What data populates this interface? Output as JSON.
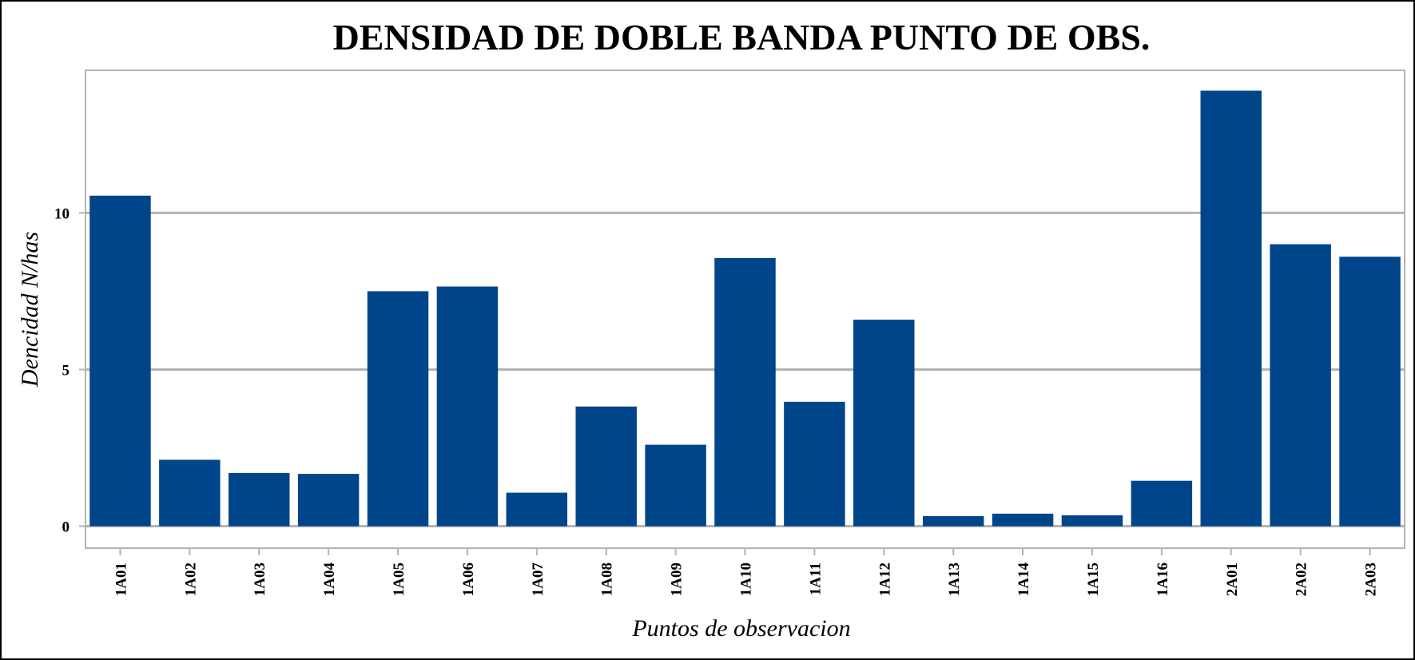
{
  "chart_data": {
    "type": "bar",
    "title": "DENSIDAD DE DOBLE BANDA PUNTO DE OBS.",
    "xlabel": "Puntos de observacion",
    "ylabel": "Dencidad N/has",
    "categories": [
      "1A01",
      "1A02",
      "1A03",
      "1A04",
      "1A05",
      "1A06",
      "1A07",
      "1A08",
      "1A09",
      "1A10",
      "1A11",
      "1A12",
      "1A13",
      "1A14",
      "1A15",
      "1A16",
      "2A01",
      "2A02",
      "2A03"
    ],
    "values": [
      10.55,
      2.12,
      1.7,
      1.67,
      7.5,
      7.65,
      1.07,
      3.82,
      2.6,
      8.56,
      3.97,
      6.59,
      0.32,
      0.4,
      0.35,
      1.45,
      13.9,
      9.0,
      8.6
    ],
    "yticks": [
      0,
      5,
      10
    ],
    "ylim": [
      -0.7,
      14.55
    ],
    "grid": true,
    "bar_color": "#00458A",
    "grid_color": "#B3B3B3"
  }
}
